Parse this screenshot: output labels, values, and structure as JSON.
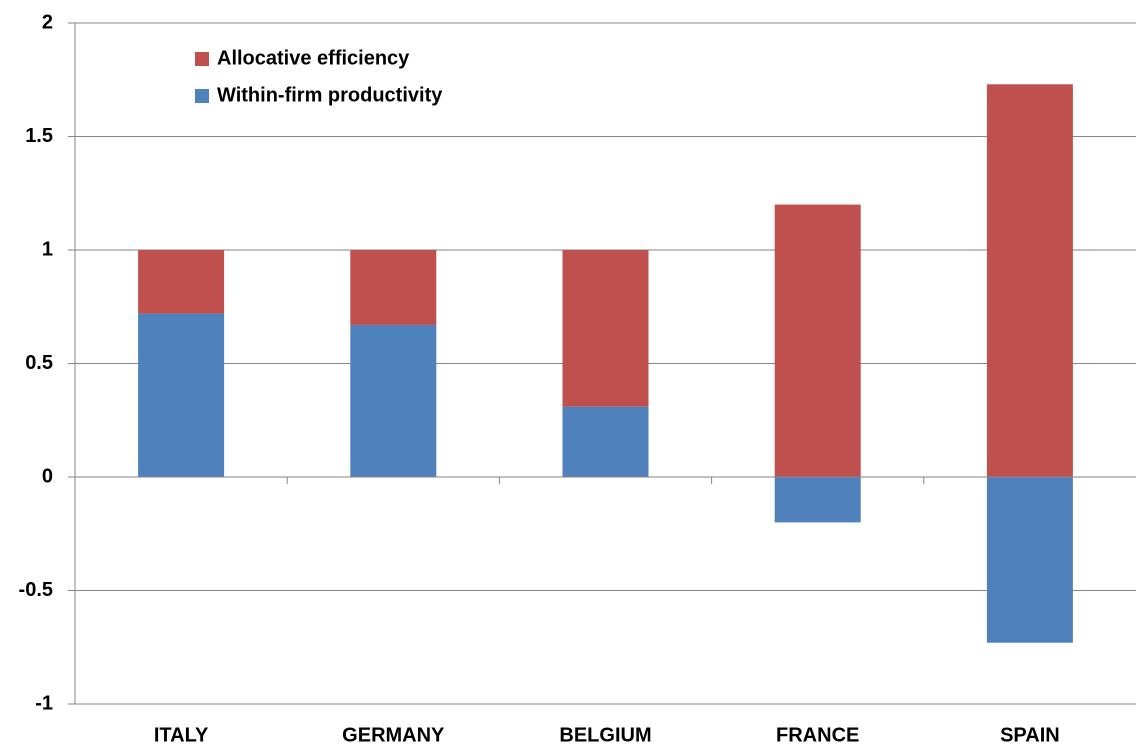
{
  "chart_data": {
    "type": "stacked_bar",
    "categories": [
      "ITALY",
      "GERMANY",
      "BELGIUM",
      "FRANCE",
      "SPAIN"
    ],
    "series": [
      {
        "name": "Within-firm productivity",
        "color": "#4f81bd",
        "values": [
          0.72,
          0.67,
          0.31,
          -0.2,
          -0.73
        ]
      },
      {
        "name": "Allocative efficiency",
        "color": "#c0504d",
        "values": [
          0.28,
          0.33,
          0.69,
          1.2,
          1.73
        ]
      }
    ],
    "ylim": [
      -1,
      2
    ],
    "yticks": [
      -1,
      -0.5,
      0,
      0.5,
      1,
      1.5,
      2
    ],
    "grid": true
  }
}
